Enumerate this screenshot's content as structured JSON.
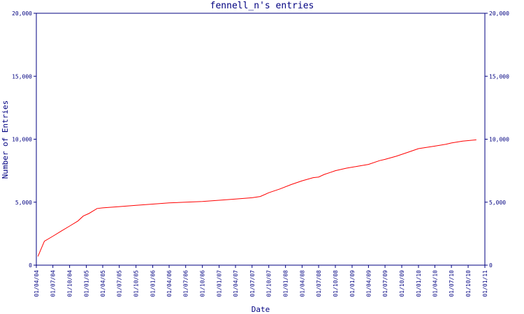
{
  "chart_data": {
    "type": "line",
    "title": "fennell_n's entries",
    "xlabel": "Date",
    "ylabel": "Number of Entries",
    "ylim": [
      0,
      20000
    ],
    "yticks": [
      0,
      5000,
      10000,
      15000,
      20000
    ],
    "ytick_labels": [
      "0",
      "5,000",
      "10,000",
      "15,000",
      "20,000"
    ],
    "xlim": [
      "01/04/04",
      "01/01/11"
    ],
    "xtick_labels": [
      "01/04/04",
      "01/07/04",
      "01/10/04",
      "01/01/05",
      "01/04/05",
      "01/07/05",
      "01/10/05",
      "01/01/06",
      "01/04/06",
      "01/07/06",
      "01/10/06",
      "01/01/07",
      "01/04/07",
      "01/07/07",
      "01/10/07",
      "01/01/08",
      "01/04/08",
      "01/07/08",
      "01/10/08",
      "01/01/09",
      "01/04/09",
      "01/07/09",
      "01/10/09",
      "01/01/10",
      "01/04/10",
      "01/07/10",
      "01/10/10",
      "01/01/11"
    ],
    "grid": false,
    "colors": {
      "line": "#ff0000",
      "axis": "#000080",
      "text": "#000080",
      "background": "#ffffff"
    },
    "series": [
      {
        "x": [
          "2004-04-10",
          "2004-05-15",
          "2004-07-01",
          "2004-08-15",
          "2004-10-01",
          "2004-11-15",
          "2004-12-15",
          "2005-01-15",
          "2005-03-01",
          "2005-04-01",
          "2005-07-01",
          "2005-10-01",
          "2006-01-01",
          "2006-04-01",
          "2006-07-01",
          "2006-10-01",
          "2007-01-01",
          "2007-04-01",
          "2007-07-01",
          "2007-08-15",
          "2007-10-01",
          "2007-12-01",
          "2008-02-01",
          "2008-04-01",
          "2008-06-01",
          "2008-07-01",
          "2008-08-01",
          "2008-09-01",
          "2008-10-01",
          "2008-12-01",
          "2009-02-01",
          "2009-04-01",
          "2009-06-01",
          "2009-07-01",
          "2009-09-01",
          "2009-11-01",
          "2010-01-01",
          "2010-04-01",
          "2010-06-01",
          "2010-07-01",
          "2010-09-01",
          "2010-11-15"
        ],
        "values": [
          700,
          1900,
          2300,
          2700,
          3100,
          3500,
          3900,
          4100,
          4500,
          4550,
          4650,
          4750,
          4850,
          4950,
          5000,
          5050,
          5150,
          5250,
          5350,
          5450,
          5750,
          6050,
          6400,
          6700,
          6950,
          7000,
          7200,
          7350,
          7500,
          7700,
          7850,
          8000,
          8300,
          8400,
          8650,
          8950,
          9250,
          9450,
          9600,
          9700,
          9850,
          9950
        ]
      }
    ]
  }
}
